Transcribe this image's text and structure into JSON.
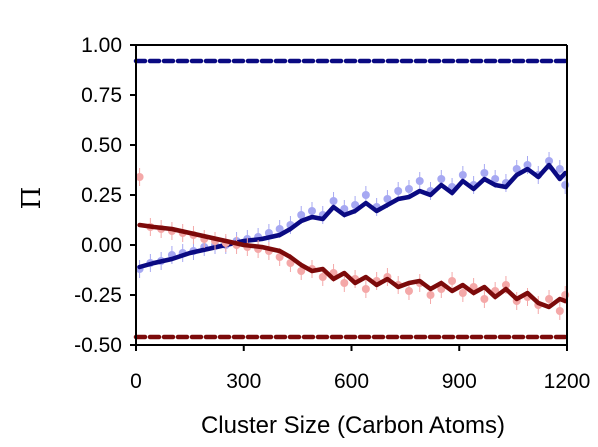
{
  "chart_data": {
    "type": "scatter",
    "title": "",
    "xlabel": "Cluster Size (Carbon Atoms)",
    "ylabel": "Π",
    "xlim": [
      0,
      1200
    ],
    "ylim": [
      -0.5,
      1.0
    ],
    "x_ticks": [
      0,
      300,
      600,
      900,
      1200
    ],
    "x_tick_labels": [
      "0",
      "300",
      "600",
      "900",
      "1200"
    ],
    "y_ticks": [
      1.0,
      0.75,
      0.5,
      0.25,
      0.0,
      -0.25,
      -0.5
    ],
    "y_tick_labels": [
      "1.00",
      "0.75",
      "0.50",
      "0.25",
      "0.00",
      "-0.25",
      "-0.50"
    ],
    "grid": false,
    "legend": "none",
    "colors": {
      "blue_line": "#0a0a82",
      "blue_points": "#a6a8f2",
      "red_line": "#7c0a0a",
      "red_points": "#f4a8a8",
      "blue_dashed": "#0a0a82",
      "red_dashed": "#7c0a0a"
    },
    "reference_lines": [
      {
        "y": 0.92,
        "style": "dashed",
        "color": "#0a0a82"
      },
      {
        "y": -0.46,
        "style": "dashed",
        "color": "#7c0a0a"
      }
    ],
    "series": [
      {
        "kind": "scatter",
        "color": "#a6a8f2",
        "x": [
          10,
          40,
          70,
          100,
          130,
          160,
          190,
          220,
          250,
          280,
          310,
          340,
          370,
          400,
          430,
          460,
          490,
          520,
          550,
          580,
          610,
          640,
          670,
          700,
          730,
          760,
          790,
          820,
          850,
          880,
          910,
          940,
          970,
          1000,
          1030,
          1060,
          1090,
          1120,
          1150,
          1180,
          1195
        ],
        "y": [
          -0.12,
          -0.09,
          -0.08,
          -0.05,
          -0.04,
          -0.03,
          -0.01,
          0.0,
          0.0,
          0.02,
          0.03,
          0.04,
          0.06,
          0.08,
          0.1,
          0.15,
          0.17,
          0.15,
          0.22,
          0.18,
          0.2,
          0.25,
          0.19,
          0.23,
          0.27,
          0.28,
          0.32,
          0.27,
          0.33,
          0.29,
          0.35,
          0.3,
          0.36,
          0.33,
          0.31,
          0.38,
          0.4,
          0.35,
          0.42,
          0.38,
          0.3
        ]
      },
      {
        "kind": "line",
        "color": "#0a0a82",
        "x": [
          10,
          50,
          100,
          150,
          200,
          250,
          300,
          350,
          400,
          430,
          460,
          490,
          520,
          550,
          580,
          610,
          640,
          670,
          700,
          730,
          760,
          790,
          820,
          850,
          880,
          910,
          940,
          970,
          1000,
          1030,
          1060,
          1090,
          1120,
          1150,
          1180,
          1195
        ],
        "y": [
          -0.11,
          -0.09,
          -0.07,
          -0.04,
          -0.02,
          0.0,
          0.02,
          0.03,
          0.05,
          0.08,
          0.12,
          0.14,
          0.13,
          0.19,
          0.15,
          0.17,
          0.21,
          0.17,
          0.2,
          0.23,
          0.24,
          0.27,
          0.25,
          0.3,
          0.26,
          0.32,
          0.28,
          0.33,
          0.3,
          0.29,
          0.35,
          0.38,
          0.34,
          0.4,
          0.33,
          0.36
        ]
      },
      {
        "kind": "scatter",
        "color": "#f4a8a8",
        "x": [
          10,
          40,
          70,
          100,
          130,
          160,
          190,
          220,
          250,
          280,
          310,
          340,
          370,
          400,
          430,
          460,
          490,
          520,
          550,
          580,
          610,
          640,
          670,
          700,
          730,
          760,
          790,
          820,
          850,
          880,
          910,
          940,
          970,
          1000,
          1030,
          1060,
          1090,
          1120,
          1150,
          1180,
          1195
        ],
        "y": [
          0.34,
          0.09,
          0.08,
          0.07,
          0.06,
          0.05,
          0.03,
          0.02,
          0.01,
          0.0,
          -0.01,
          -0.02,
          -0.03,
          -0.06,
          -0.09,
          -0.13,
          -0.12,
          -0.16,
          -0.14,
          -0.19,
          -0.17,
          -0.22,
          -0.18,
          -0.16,
          -0.2,
          -0.23,
          -0.19,
          -0.25,
          -0.22,
          -0.18,
          -0.24,
          -0.21,
          -0.27,
          -0.23,
          -0.2,
          -0.28,
          -0.26,
          -0.3,
          -0.27,
          -0.33,
          -0.25
        ]
      },
      {
        "kind": "line",
        "color": "#7c0a0a",
        "x": [
          10,
          50,
          100,
          150,
          200,
          250,
          300,
          350,
          400,
          430,
          460,
          490,
          520,
          550,
          580,
          610,
          640,
          670,
          700,
          730,
          760,
          790,
          820,
          850,
          880,
          910,
          940,
          970,
          1000,
          1030,
          1060,
          1090,
          1120,
          1150,
          1180,
          1195
        ],
        "y": [
          0.1,
          0.09,
          0.08,
          0.06,
          0.04,
          0.02,
          0.0,
          -0.01,
          -0.03,
          -0.06,
          -0.1,
          -0.13,
          -0.12,
          -0.17,
          -0.14,
          -0.19,
          -0.16,
          -0.2,
          -0.17,
          -0.21,
          -0.19,
          -0.18,
          -0.22,
          -0.19,
          -0.23,
          -0.2,
          -0.24,
          -0.21,
          -0.26,
          -0.22,
          -0.27,
          -0.24,
          -0.29,
          -0.31,
          -0.27,
          -0.28
        ]
      }
    ]
  }
}
